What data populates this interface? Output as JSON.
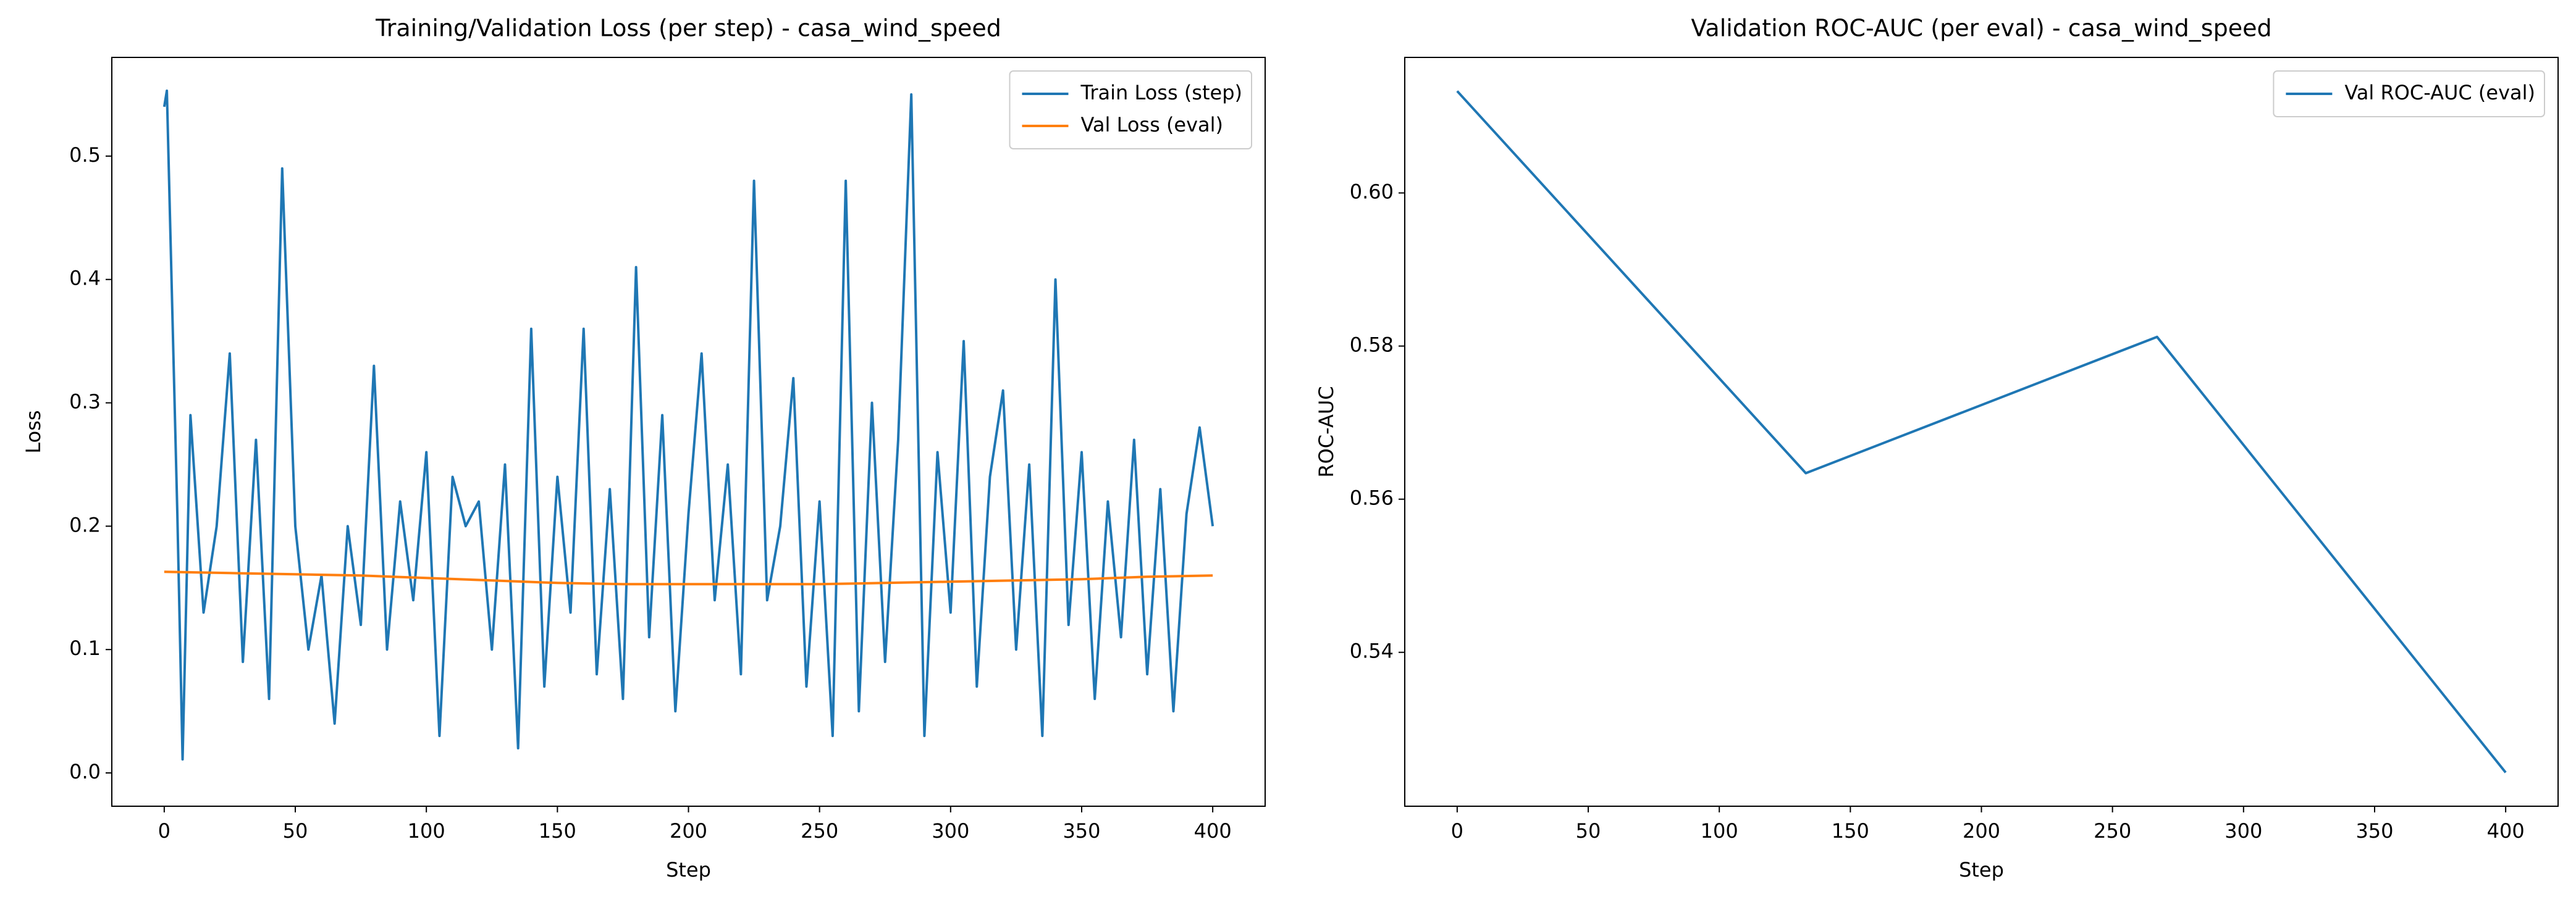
{
  "chart_data": [
    {
      "type": "line",
      "title": "Training/Validation Loss (per step) - casa_wind_speed",
      "xlabel": "Step",
      "ylabel": "Loss",
      "xlim": [
        -20,
        420
      ],
      "xticks": [
        0,
        50,
        100,
        150,
        200,
        250,
        300,
        350,
        400
      ],
      "ylim": [
        -0.027,
        0.58
      ],
      "yticks": [
        {
          "value": 0,
          "label": "0.0"
        },
        0.1,
        0.2,
        0.3,
        0.4,
        0.5
      ],
      "grid": false,
      "legend": "upper right",
      "series": [
        {
          "name": "Train Loss (step)",
          "color": "#1f77b4",
          "x": [
            0,
            1,
            5,
            7,
            10,
            15,
            20,
            25,
            30,
            35,
            40,
            45,
            50,
            55,
            60,
            65,
            70,
            75,
            80,
            85,
            90,
            95,
            100,
            105,
            110,
            115,
            120,
            125,
            130,
            135,
            140,
            145,
            150,
            155,
            160,
            165,
            170,
            175,
            180,
            185,
            190,
            195,
            200,
            205,
            210,
            215,
            220,
            225,
            230,
            235,
            240,
            245,
            250,
            255,
            260,
            265,
            270,
            275,
            280,
            285,
            290,
            295,
            300,
            305,
            310,
            315,
            320,
            325,
            330,
            335,
            340,
            345,
            350,
            355,
            360,
            365,
            370,
            375,
            380,
            385,
            390,
            395,
            400
          ],
          "values": [
            0.54,
            0.553,
            0.21,
            0.011,
            0.29,
            0.13,
            0.2,
            0.34,
            0.09,
            0.27,
            0.06,
            0.49,
            0.2,
            0.1,
            0.16,
            0.04,
            0.2,
            0.12,
            0.33,
            0.1,
            0.22,
            0.14,
            0.26,
            0.03,
            0.24,
            0.2,
            0.22,
            0.1,
            0.25,
            0.02,
            0.36,
            0.07,
            0.24,
            0.13,
            0.36,
            0.08,
            0.23,
            0.06,
            0.41,
            0.11,
            0.29,
            0.05,
            0.21,
            0.34,
            0.14,
            0.25,
            0.08,
            0.48,
            0.14,
            0.2,
            0.32,
            0.07,
            0.22,
            0.03,
            0.48,
            0.05,
            0.3,
            0.09,
            0.27,
            0.55,
            0.03,
            0.26,
            0.13,
            0.35,
            0.07,
            0.24,
            0.31,
            0.1,
            0.25,
            0.03,
            0.4,
            0.12,
            0.26,
            0.06,
            0.22,
            0.11,
            0.27,
            0.08,
            0.23,
            0.05,
            0.21,
            0.28,
            0.2
          ]
        },
        {
          "name": "Val Loss (eval)",
          "color": "#ff7f0e",
          "x": [
            0,
            25,
            50,
            75,
            100,
            125,
            150,
            175,
            200,
            225,
            250,
            275,
            300,
            325,
            350,
            375,
            400
          ],
          "values": [
            0.163,
            0.162,
            0.161,
            0.16,
            0.158,
            0.156,
            0.154,
            0.153,
            0.153,
            0.153,
            0.153,
            0.154,
            0.155,
            0.156,
            0.157,
            0.159,
            0.16
          ]
        }
      ]
    },
    {
      "type": "line",
      "title": "Validation ROC-AUC (per eval) - casa_wind_speed",
      "xlabel": "Step",
      "ylabel": "ROC-AUC",
      "xlim": [
        -20,
        420
      ],
      "xticks": [
        0,
        50,
        100,
        150,
        200,
        250,
        300,
        350,
        400
      ],
      "ylim": [
        0.5199,
        0.6177
      ],
      "yticks": [
        0.54,
        0.56,
        0.58,
        {
          "value": 0.6,
          "label": "0.60"
        }
      ],
      "grid": false,
      "legend": "upper right",
      "series": [
        {
          "name": "Val ROC-AUC (eval)",
          "color": "#1f77b4",
          "x": [
            0,
            133,
            267,
            400
          ],
          "values": [
            0.6133,
            0.5634,
            0.5812,
            0.5243
          ]
        }
      ]
    }
  ]
}
